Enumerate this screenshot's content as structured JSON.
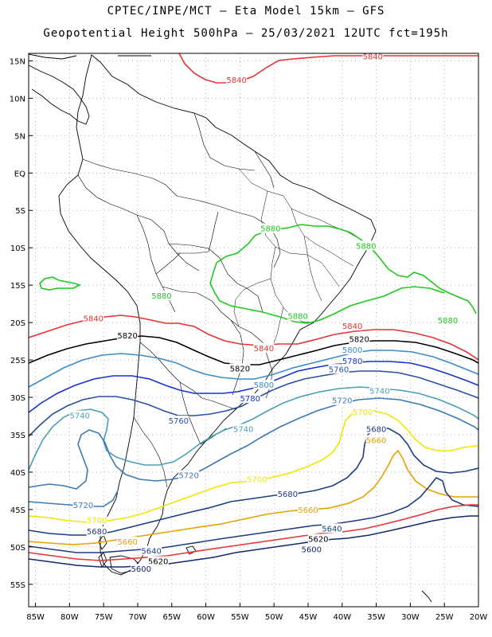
{
  "header": {
    "line1": "CPTEC/INPE/MCT –  Eta Model 15km – GFS",
    "line2": "Geopotential Height 500hPa – 25/03/2021 12UTC fct=195h"
  },
  "map": {
    "lat_labels": [
      "15N",
      "10N",
      "5N",
      "EQ",
      "5S",
      "10S",
      "15S",
      "20S",
      "25S",
      "30S",
      "35S",
      "40S",
      "45S",
      "50S",
      "55S"
    ],
    "lon_labels": [
      "85W",
      "80W",
      "75W",
      "70W",
      "65W",
      "60W",
      "55W",
      "50W",
      "45W",
      "40W",
      "35W",
      "30W",
      "25W",
      "20W"
    ],
    "extent": {
      "lon": [
        -86,
        -20
      ],
      "lat": [
        -58,
        16
      ]
    },
    "contour_colors": {
      "5600": "#14286e",
      "5640": "#1e3c82",
      "5660": "#e6a000",
      "5680": "#1e3c82",
      "5700": "#f0e600",
      "5720": "#3c78b4",
      "5740": "#46a0b4",
      "5760": "#2850a0",
      "5780": "#1432d2",
      "5800": "#3c8cc8",
      "5820": "#000000",
      "5840": "#e63232",
      "5860": "#1ec81e",
      "5880": "#1ec81e"
    },
    "contour_labels": [
      {
        "text": "5840",
        "lon": -55.5,
        "lat": 12.4
      },
      {
        "text": "5840",
        "lon": -76.5,
        "lat": -19.5
      },
      {
        "text": "5840",
        "lon": -51.5,
        "lat": -23.5
      },
      {
        "text": "5840",
        "lon": -38.5,
        "lat": -20.5
      },
      {
        "text": "5820",
        "lon": -71.5,
        "lat": -21.8
      },
      {
        "text": "5820",
        "lon": -55.0,
        "lat": -26.2
      },
      {
        "text": "5820",
        "lon": -37.5,
        "lat": -22.3
      },
      {
        "text": "5800",
        "lon": -38.5,
        "lat": -23.7
      },
      {
        "text": "5800",
        "lon": -51.5,
        "lat": -28.4
      },
      {
        "text": "5780",
        "lon": -38.5,
        "lat": -25.2
      },
      {
        "text": "5780",
        "lon": -53.5,
        "lat": -30.2
      },
      {
        "text": "5760",
        "lon": -40.5,
        "lat": -26.3
      },
      {
        "text": "5760",
        "lon": -64.0,
        "lat": -33.2
      },
      {
        "text": "5740",
        "lon": -78.5,
        "lat": -32.5
      },
      {
        "text": "5740",
        "lon": -54.5,
        "lat": -34.3
      },
      {
        "text": "5740",
        "lon": -34.5,
        "lat": -29.2
      },
      {
        "text": "5720",
        "lon": -40.0,
        "lat": -30.5
      },
      {
        "text": "5720",
        "lon": -62.5,
        "lat": -40.5
      },
      {
        "text": "5720",
        "lon": -78.0,
        "lat": -44.5
      },
      {
        "text": "5700",
        "lon": -37.0,
        "lat": -32.0
      },
      {
        "text": "5700",
        "lon": -52.5,
        "lat": -41.0
      },
      {
        "text": "5700",
        "lon": -76.0,
        "lat": -46.5
      },
      {
        "text": "5680",
        "lon": -35.0,
        "lat": -34.3
      },
      {
        "text": "5680",
        "lon": -48.0,
        "lat": -43.0
      },
      {
        "text": "5680",
        "lon": -76.0,
        "lat": -48.0
      },
      {
        "text": "5660",
        "lon": -35.0,
        "lat": -35.8
      },
      {
        "text": "5660",
        "lon": -45.0,
        "lat": -45.1
      },
      {
        "text": "5660",
        "lon": -71.5,
        "lat": -49.4
      },
      {
        "text": "5640",
        "lon": -41.5,
        "lat": -47.6
      },
      {
        "text": "5640",
        "lon": -68.0,
        "lat": -50.6
      },
      {
        "text": "5620",
        "lon": -43.5,
        "lat": -49.0
      },
      {
        "text": "5620",
        "lon": -67.0,
        "lat": -52.0
      },
      {
        "text": "5600",
        "lon": -44.5,
        "lat": -50.4
      },
      {
        "text": "5600",
        "lon": -69.5,
        "lat": -53.0
      },
      {
        "text": "5880",
        "lon": -50.5,
        "lat": -7.5
      },
      {
        "text": "5880",
        "lon": -36.5,
        "lat": -9.8
      },
      {
        "text": "5880",
        "lon": -66.5,
        "lat": -16.5
      },
      {
        "text": "5880",
        "lon": -46.5,
        "lat": -19.2
      },
      {
        "text": "5880",
        "lon": -24.5,
        "lat": -19.8
      },
      {
        "text": "5840",
        "lon": -35.5,
        "lat": 15.5
      }
    ]
  }
}
